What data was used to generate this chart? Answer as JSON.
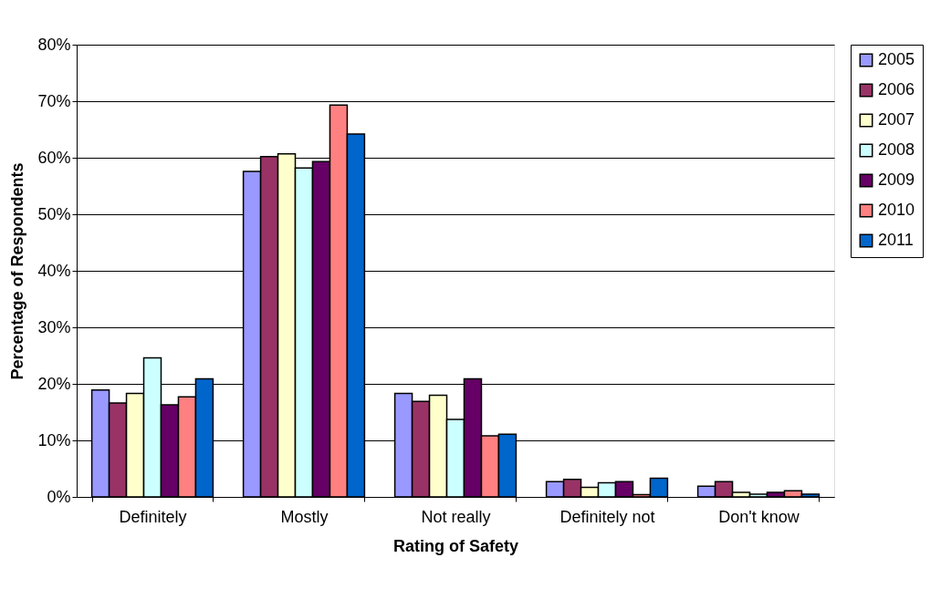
{
  "chart_data": {
    "type": "bar",
    "xlabel": "Rating of Safety",
    "ylabel": "Percentage of Respondents",
    "categories": [
      "Definitely",
      "Mostly",
      "Not really",
      "Definitely not",
      "Don't know"
    ],
    "series": [
      {
        "name": "2005",
        "color": "#9999ff",
        "values": [
          18.9,
          57.6,
          18.3,
          2.7,
          1.9
        ]
      },
      {
        "name": "2006",
        "color": "#993366",
        "values": [
          16.6,
          60.2,
          16.9,
          3.1,
          2.7
        ]
      },
      {
        "name": "2007",
        "color": "#ffffcc",
        "values": [
          18.3,
          60.7,
          18.0,
          1.7,
          0.8
        ]
      },
      {
        "name": "2008",
        "color": "#ccffff",
        "values": [
          24.6,
          58.2,
          13.7,
          2.5,
          0.5
        ]
      },
      {
        "name": "2009",
        "color": "#660066",
        "values": [
          16.3,
          59.3,
          20.9,
          2.7,
          0.8
        ]
      },
      {
        "name": "2010",
        "color": "#ff8080",
        "values": [
          17.7,
          69.3,
          10.8,
          0.4,
          1.1
        ]
      },
      {
        "name": "2011",
        "color": "#0066cc",
        "values": [
          20.9,
          64.2,
          11.1,
          3.3,
          0.5
        ]
      }
    ],
    "ylim": [
      0,
      80
    ],
    "yticks": [
      {
        "value": 0,
        "label": "0%"
      },
      {
        "value": 10,
        "label": "10%"
      },
      {
        "value": 20,
        "label": "20%"
      },
      {
        "value": 30,
        "label": "30%"
      },
      {
        "value": 40,
        "label": "40%"
      },
      {
        "value": 50,
        "label": "50%"
      },
      {
        "value": 60,
        "label": "60%"
      },
      {
        "value": 70,
        "label": "70%"
      },
      {
        "value": 80,
        "label": "80%"
      }
    ],
    "grid": "y",
    "legend": "right"
  }
}
